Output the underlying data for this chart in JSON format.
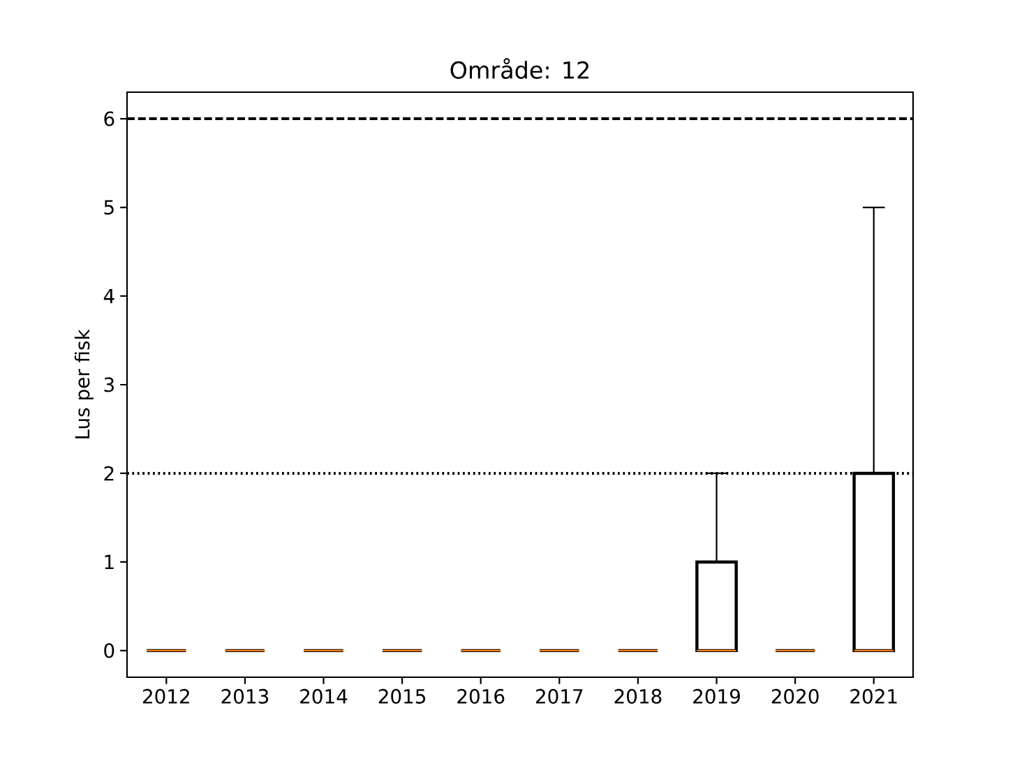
{
  "chart_data": {
    "type": "box",
    "title": "Område: 12",
    "ylabel": "Lus per fisk",
    "categories": [
      "2012",
      "2013",
      "2014",
      "2015",
      "2016",
      "2017",
      "2018",
      "2019",
      "2020",
      "2021"
    ],
    "boxes": [
      {
        "low": 0,
        "q1": 0,
        "median": 0,
        "q3": 0,
        "high": 0
      },
      {
        "low": 0,
        "q1": 0,
        "median": 0,
        "q3": 0,
        "high": 0
      },
      {
        "low": 0,
        "q1": 0,
        "median": 0,
        "q3": 0,
        "high": 0
      },
      {
        "low": 0,
        "q1": 0,
        "median": 0,
        "q3": 0,
        "high": 0
      },
      {
        "low": 0,
        "q1": 0,
        "median": 0,
        "q3": 0,
        "high": 0
      },
      {
        "low": 0,
        "q1": 0,
        "median": 0,
        "q3": 0,
        "high": 0
      },
      {
        "low": 0,
        "q1": 0,
        "median": 0,
        "q3": 0,
        "high": 0
      },
      {
        "low": 0,
        "q1": 0,
        "median": 0,
        "q3": 1,
        "high": 2
      },
      {
        "low": 0,
        "q1": 0,
        "median": 0,
        "q3": 0,
        "high": 0
      },
      {
        "low": 0,
        "q1": 0,
        "median": 0,
        "q3": 2,
        "high": 5
      }
    ],
    "ylim": [
      -0.3,
      6.3
    ],
    "yticks": [
      0,
      1,
      2,
      3,
      4,
      5,
      6
    ],
    "ref_lines": [
      {
        "axis": "y",
        "value": 6,
        "line_style": "dashed",
        "color": "#000000"
      },
      {
        "axis": "y",
        "value": 2,
        "line_style": "dotted",
        "color": "#000000"
      }
    ]
  }
}
